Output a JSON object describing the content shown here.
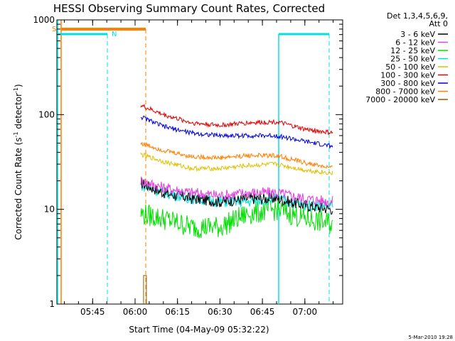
{
  "chart_data": {
    "type": "line",
    "title": "HESSI Observing Summary Count Rates, Corrected",
    "xlabel": "Start Time (04-May-09 05:32:22)",
    "ylabel": "Corrected Count Rate (s⁻¹ detector⁻¹)",
    "ylabel_main": "Corrected Count Rate (s",
    "ylabel_mid": " detector",
    "ylabel_end": ")",
    "ylabel_sup": "-1",
    "yscale": "log",
    "ylim": [
      1,
      1000
    ],
    "xlim": [
      "05:32:22",
      "07:13:22"
    ],
    "x_tick_labels": [
      "05:45",
      "06:00",
      "06:15",
      "06:30",
      "06:45",
      "07:00"
    ],
    "x_tick_times": [
      "05:45",
      "06:00",
      "06:15",
      "06:30",
      "06:45",
      "07:00"
    ],
    "y_tick_labels": [
      "1",
      "10",
      "100",
      "1000"
    ],
    "y_tick_values": [
      1,
      10,
      100,
      1000
    ],
    "legend_header": [
      "Det 1,3,4,5,6,9,",
      "Att 0"
    ],
    "legend_position": "right",
    "series": [
      {
        "name": "3 - 6 keV",
        "color": "#000000",
        "x": [
          "06:02",
          "06:10",
          "06:20",
          "06:30",
          "06:40",
          "06:50",
          "07:00",
          "07:10"
        ],
        "values": [
          19,
          15,
          13,
          12,
          13,
          13,
          11,
          10
        ]
      },
      {
        "name": "6 - 12 keV",
        "color": "#e040e0",
        "x": [
          "06:02",
          "06:10",
          "06:20",
          "06:30",
          "06:40",
          "06:50",
          "07:00",
          "07:10"
        ],
        "values": [
          20,
          17,
          15,
          14,
          15,
          15,
          13,
          12
        ]
      },
      {
        "name": "12 - 25 keV",
        "color": "#00e000",
        "x": [
          "06:02",
          "06:10",
          "06:20",
          "06:30",
          "06:40",
          "06:50",
          "07:00",
          "07:10"
        ],
        "values": [
          9,
          8,
          6.5,
          6.5,
          9,
          10,
          8,
          7
        ]
      },
      {
        "name": "25 - 50 keV",
        "color": "#00e0e0",
        "x": [
          "06:02",
          "06:10",
          "06:20",
          "06:30",
          "06:40",
          "06:50",
          "07:00",
          "07:10"
        ],
        "values": [
          18,
          15,
          13,
          12,
          12,
          13,
          11,
          11
        ]
      },
      {
        "name": "50 - 100 keV",
        "color": "#e0c000",
        "x": [
          "06:02",
          "06:10",
          "06:20",
          "06:30",
          "06:40",
          "06:50",
          "07:00",
          "07:10"
        ],
        "values": [
          38,
          32,
          27,
          27,
          29,
          30,
          26,
          24
        ]
      },
      {
        "name": "100 - 300 keV",
        "color": "#e00000",
        "x": [
          "06:02",
          "06:10",
          "06:20",
          "06:30",
          "06:40",
          "06:50",
          "07:00",
          "07:10"
        ],
        "values": [
          125,
          100,
          82,
          77,
          82,
          84,
          70,
          64
        ]
      },
      {
        "name": "300 - 800 keV",
        "color": "#0000e0",
        "x": [
          "06:02",
          "06:10",
          "06:20",
          "06:30",
          "06:40",
          "06:50",
          "07:00",
          "07:10"
        ],
        "values": [
          95,
          75,
          64,
          60,
          60,
          60,
          52,
          46
        ]
      },
      {
        "name": "800 - 7000 keV",
        "color": "#ff8000",
        "x": [
          "06:02",
          "06:10",
          "06:20",
          "06:30",
          "06:40",
          "06:50",
          "07:00",
          "07:10"
        ],
        "values": [
          50,
          42,
          36,
          35,
          37,
          37,
          31,
          27
        ]
      },
      {
        "name": "7000 - 20000 keV",
        "color": "#8a6000",
        "x": [
          "06:03",
          "06:04"
        ],
        "values": [
          2,
          2
        ]
      }
    ],
    "annotations": [
      {
        "text": "S",
        "color": "#ff8000"
      },
      {
        "text": "N",
        "color": "#00e0e0"
      }
    ],
    "timestamp": "5-Mar-2010 19:28"
  }
}
